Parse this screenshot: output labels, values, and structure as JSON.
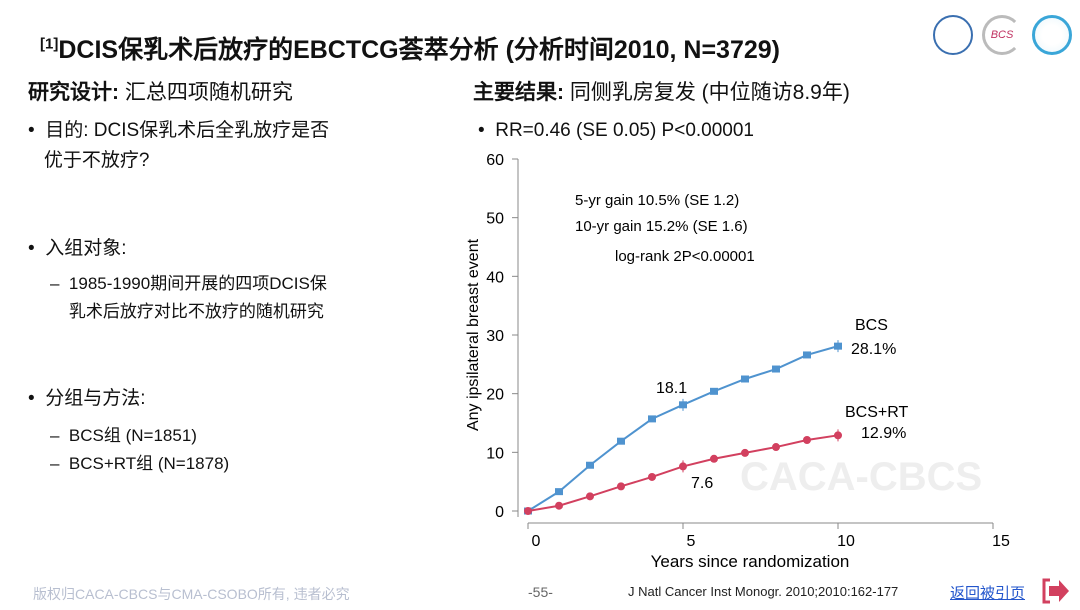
{
  "title": {
    "ref": "[1]",
    "text": "DCIS保乳术后放疗的EBCTCG荟萃分析 (分析时间2010, N=3729)"
  },
  "logos": [
    "CACA logo",
    "BCS logo",
    "CSOBO logo"
  ],
  "left": {
    "heading_bold": "研究设计:",
    "heading_rest": " 汇总四项随机研究",
    "bullets": [
      {
        "text": "目的: DCIS保乳术后全乳放疗是否",
        "text2": "优于不放疗?"
      },
      {
        "text": "入组对象:",
        "sub": [
          "1985-1990期间开展的四项DCIS保",
          "乳术后放疗对比不放疗的随机研究"
        ]
      },
      {
        "text": "分组与方法:",
        "sub": [
          "BCS组 (N=1851)",
          "BCS+RT组 (N=1878)"
        ]
      }
    ]
  },
  "right": {
    "heading_bold": "主要结果:",
    "heading_rest": " 同侧乳房复发 (中位随访8.9年)",
    "bullet": "RR=0.46 (SE 0.05) P<0.00001"
  },
  "chart_data": {
    "type": "line",
    "xlabel": "Years since randomization",
    "ylabel": "Any ipsilateral breast event",
    "xlim": [
      0,
      15
    ],
    "ylim": [
      0,
      60
    ],
    "xticks": [
      0,
      5,
      10,
      15
    ],
    "yticks": [
      0,
      10,
      20,
      30,
      40,
      50,
      60
    ],
    "annotations": [
      "5-yr gain 10.5% (SE 1.2)",
      "10-yr gain 15.2% (SE 1.6)",
      "log-rank 2P<0.00001"
    ],
    "series": [
      {
        "name": "BCS",
        "end_label": "28.1%",
        "color": "#4f93cf",
        "x": [
          0,
          1,
          2,
          3,
          4,
          5,
          6,
          7,
          8,
          9,
          10
        ],
        "values": [
          0,
          3.3,
          7.8,
          11.9,
          15.7,
          18.1,
          20.4,
          22.5,
          24.2,
          26.6,
          28.1
        ],
        "mid_label": "18.1"
      },
      {
        "name": "BCS+RT",
        "end_label": "12.9%",
        "color": "#d2405f",
        "x": [
          0,
          1,
          2,
          3,
          4,
          5,
          6,
          7,
          8,
          9,
          10
        ],
        "values": [
          0,
          0.9,
          2.5,
          4.2,
          5.8,
          7.6,
          8.9,
          9.9,
          10.9,
          12.1,
          12.9
        ],
        "mid_label": "7.6"
      }
    ],
    "watermark": "CACA-CBCS"
  },
  "footer": {
    "copyright": "版权归CACA-CBCS与CMA-CSOBO所有, 违者必究",
    "page": "-55-",
    "citation": "J Natl Cancer Inst Monogr. 2010;2010:162-177",
    "back": "返回被引页"
  }
}
